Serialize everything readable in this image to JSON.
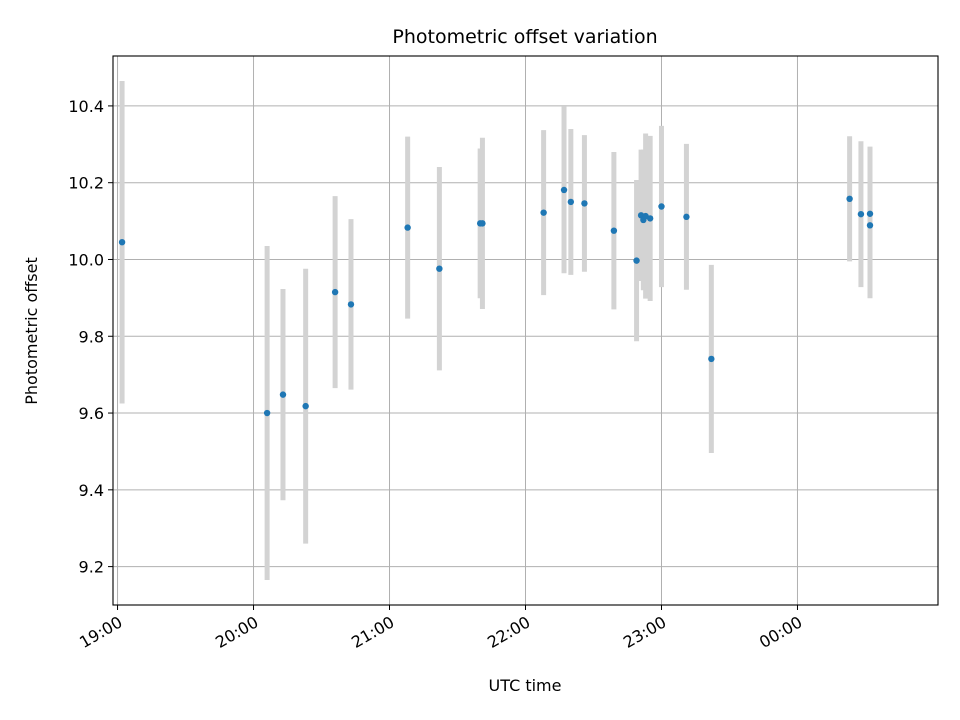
{
  "chart_data": {
    "type": "scatter",
    "title": "Photometric offset variation",
    "xlabel": "UTC time",
    "ylabel": "Photometric offset",
    "grid": true,
    "x_axis_type": "time",
    "xlim": [
      "18:58",
      "01:02"
    ],
    "ylim": [
      9.1,
      10.53
    ],
    "xticks": [
      "19:00",
      "20:00",
      "21:00",
      "22:00",
      "23:00",
      "00:00"
    ],
    "yticks": [
      9.2,
      9.4,
      9.6,
      9.8,
      10.0,
      10.2,
      10.4
    ],
    "colors": {
      "point": "#1f77b4",
      "errorbar": "#d3d3d3",
      "grid": "#b0b0b0"
    },
    "series": [
      {
        "x": [
          "19:02",
          "20:06",
          "20:13",
          "20:23",
          "20:36",
          "20:43",
          "21:08",
          "21:22",
          "21:40",
          "21:41",
          "22:08",
          "22:17",
          "22:20",
          "22:26",
          "22:39",
          "22:49",
          "22:51",
          "22:52",
          "22:53",
          "22:55",
          "23:00",
          "23:11",
          "23:22",
          "00:23",
          "00:28",
          "00:32",
          "00:32"
        ],
        "y": [
          10.045,
          9.6,
          9.648,
          9.618,
          9.915,
          9.883,
          10.083,
          9.976,
          10.094,
          10.094,
          10.122,
          10.181,
          10.15,
          10.146,
          10.075,
          9.997,
          10.115,
          10.103,
          10.113,
          10.107,
          10.138,
          10.111,
          9.741,
          10.158,
          10.118,
          10.089,
          10.119
        ],
        "yerr": [
          0.42,
          0.435,
          0.275,
          0.358,
          0.25,
          0.222,
          0.237,
          0.265,
          0.195,
          0.223,
          0.215,
          0.217,
          0.19,
          0.178,
          0.205,
          0.21,
          0.171,
          0.183,
          0.215,
          0.215,
          0.21,
          0.19,
          0.245,
          0.163,
          0.19,
          0.19,
          0.175
        ]
      }
    ]
  }
}
